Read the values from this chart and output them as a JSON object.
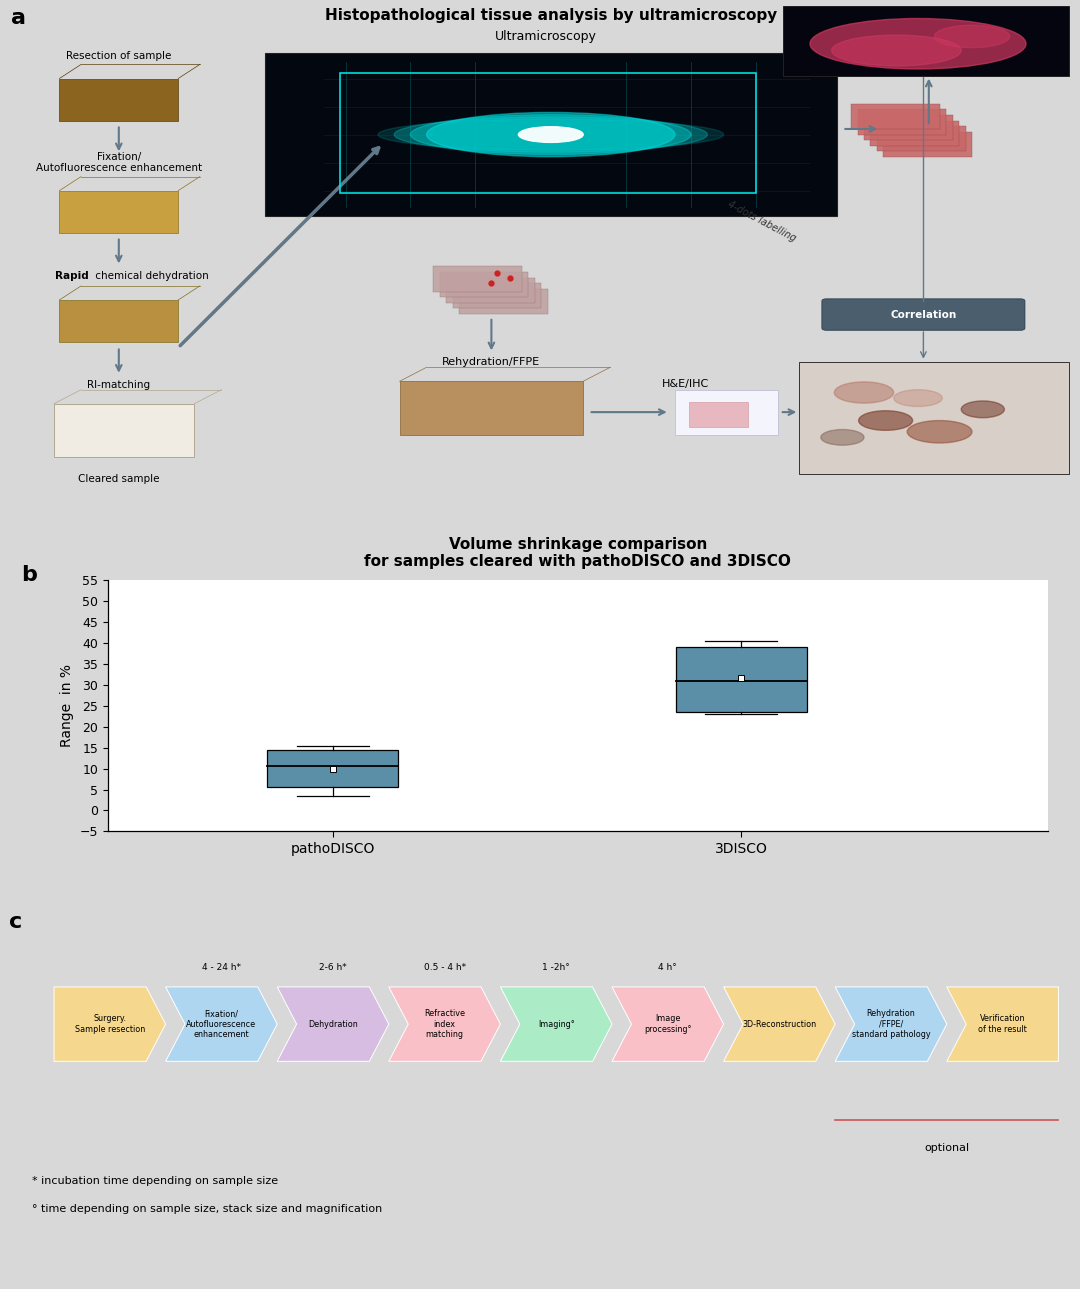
{
  "title_a": "Histopathological tissue analysis by ultramicroscopy",
  "bg_color": "#d8d8d8",
  "box_color": "#5b8fa8",
  "box_edge": "#000000",
  "pathoDISCO": {
    "whislo": 3.5,
    "q1": 5.5,
    "med": 10.5,
    "q3": 14.5,
    "whishi": 15.5,
    "mean": 10.0
  },
  "3DISCO": {
    "whislo": 23.0,
    "q1": 23.5,
    "med": 31.0,
    "q3": 39.0,
    "whishi": 40.5,
    "mean": 31.5
  },
  "ylim": [
    -5,
    55
  ],
  "yticks": [
    -5,
    0,
    5,
    10,
    15,
    20,
    25,
    30,
    35,
    40,
    45,
    50,
    55
  ],
  "ylabel": "Range  in %",
  "chart_title": "Volume shrinkage comparison\nfor samples cleared with pathoDISCO and 3DISCO",
  "timeline_steps": [
    {
      "label": "Surgery.\nSample resection",
      "time": "",
      "color": "#f5d78e"
    },
    {
      "label": "Fixation/\nAutofluorescence\nenhancement",
      "time": "4 - 24 h*",
      "color": "#aed6f1"
    },
    {
      "label": "Dehydration",
      "time": "2-6 h*",
      "color": "#d7bde2"
    },
    {
      "label": "Refractive\nindex\nmatching",
      "time": "0.5 - 4 h*",
      "color": "#f9c0c8"
    },
    {
      "label": "Imaging°",
      "time": "1 -2h°",
      "color": "#abebc6"
    },
    {
      "label": "Image\nprocessing°",
      "time": "4 h°",
      "color": "#f9c0c8"
    },
    {
      "label": "3D-Reconstruction",
      "time": "",
      "color": "#f5d78e"
    },
    {
      "label": "Rehydration\n/FFPE/\nstandard pathology",
      "time": "",
      "color": "#aed6f1"
    },
    {
      "label": "Verification\nof the result",
      "time": "",
      "color": "#f5d78e"
    }
  ],
  "footnote1": "* incubation time depending on sample size",
  "footnote2": "° time depending on sample size, stack size and magnification",
  "optional_text": "optional"
}
